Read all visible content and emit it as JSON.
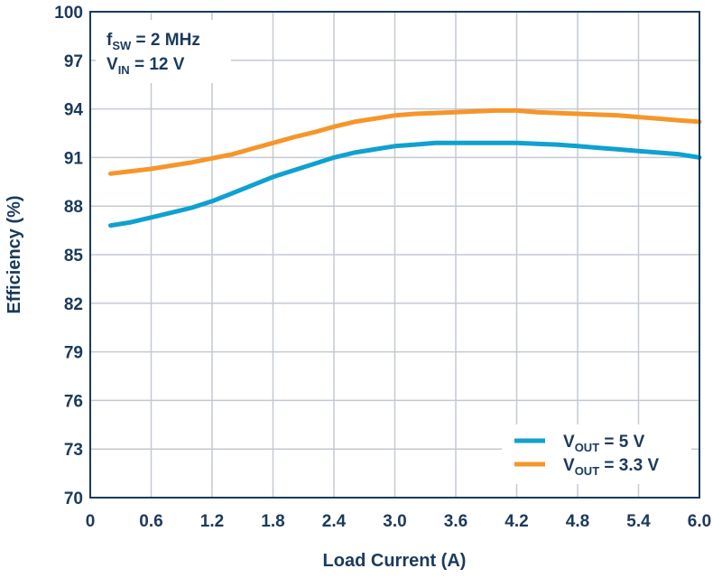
{
  "chart_data": {
    "type": "line",
    "xlabel": "Load Current (A)",
    "ylabel": "Efficiency (%)",
    "xlim": [
      0,
      6.0
    ],
    "ylim": [
      70,
      100
    ],
    "x_ticks": [
      "0",
      "0.6",
      "1.2",
      "1.8",
      "2.4",
      "3.0",
      "3.6",
      "4.2",
      "4.8",
      "5.4",
      "6.0"
    ],
    "y_ticks": [
      "70",
      "73",
      "76",
      "79",
      "82",
      "85",
      "88",
      "91",
      "94",
      "97",
      "100"
    ],
    "grid": true,
    "legend_position": "bottom-right",
    "annotations": {
      "line1": {
        "main": "f",
        "sub": "SW",
        "rest": " = 2 MHz"
      },
      "line2": {
        "main": "V",
        "sub": "IN",
        "rest": " = 12 V"
      }
    },
    "series": [
      {
        "legend_main": "V",
        "legend_sub": "OUT",
        "legend_rest": " = 5 V",
        "color": "#0fa1cf",
        "x": [
          0.2,
          0.4,
          0.6,
          0.8,
          1.0,
          1.2,
          1.4,
          1.6,
          1.8,
          2.0,
          2.2,
          2.4,
          2.6,
          2.8,
          3.0,
          3.2,
          3.4,
          3.6,
          3.8,
          4.0,
          4.2,
          4.4,
          4.6,
          4.8,
          5.0,
          5.2,
          5.4,
          5.6,
          5.8,
          6.0
        ],
        "y": [
          86.8,
          87.0,
          87.3,
          87.6,
          87.9,
          88.3,
          88.8,
          89.3,
          89.8,
          90.2,
          90.6,
          91.0,
          91.3,
          91.5,
          91.7,
          91.8,
          91.9,
          91.9,
          91.9,
          91.9,
          91.9,
          91.85,
          91.8,
          91.7,
          91.6,
          91.5,
          91.4,
          91.3,
          91.2,
          91.0
        ]
      },
      {
        "legend_main": "V",
        "legend_sub": "OUT",
        "legend_rest": " = 3.3 V",
        "color": "#f5962a",
        "x": [
          0.2,
          0.4,
          0.6,
          0.8,
          1.0,
          1.2,
          1.4,
          1.6,
          1.8,
          2.0,
          2.2,
          2.4,
          2.6,
          2.8,
          3.0,
          3.2,
          3.4,
          3.6,
          3.8,
          4.0,
          4.2,
          4.4,
          4.6,
          4.8,
          5.0,
          5.2,
          5.4,
          5.6,
          5.8,
          6.0
        ],
        "y": [
          90.0,
          90.15,
          90.3,
          90.5,
          90.7,
          90.95,
          91.2,
          91.55,
          91.9,
          92.25,
          92.55,
          92.9,
          93.2,
          93.4,
          93.6,
          93.7,
          93.75,
          93.8,
          93.85,
          93.9,
          93.9,
          93.8,
          93.75,
          93.7,
          93.65,
          93.6,
          93.5,
          93.4,
          93.3,
          93.2
        ]
      }
    ]
  }
}
